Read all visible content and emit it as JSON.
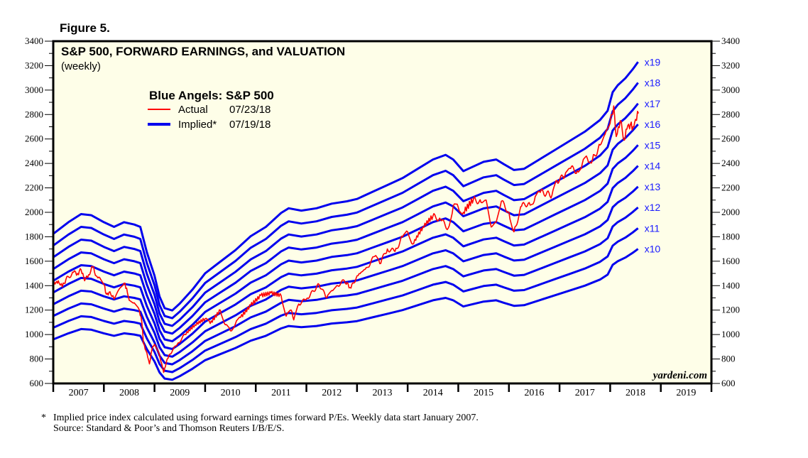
{
  "figure_label": "Figure 5.",
  "footnote": {
    "marker": "*",
    "line1": "Implied price index calculated using forward earnings times forward P/Es. Weekly data start January 2007.",
    "line2": "Source: Standard & Poor’s and Thomson Reuters I/B/E/S."
  },
  "watermark": "yardeni.com",
  "colors": {
    "actual": "#ff0000",
    "implied": "#0000ee",
    "multiple_label": "#1a1aff",
    "plot_background": "#fefee8",
    "frame": "#000000"
  },
  "chart_data": {
    "type": "line",
    "title": "S&P 500, FORWARD EARNINGS, and VALUATION",
    "subtitle": "(weekly)",
    "legend": {
      "title": "Blue Angels: S&P 500",
      "placement": "top-left",
      "entries": [
        {
          "name": "Actual",
          "date": "07/23/18"
        },
        {
          "name": "Implied*",
          "date": "07/19/18"
        }
      ]
    },
    "xlabel": "",
    "ylabel": "",
    "xlim": [
      2007,
      2020
    ],
    "ylim": [
      600,
      3400
    ],
    "y_ticks": [
      600,
      800,
      1000,
      1200,
      1400,
      1600,
      1800,
      2000,
      2200,
      2400,
      2600,
      2800,
      3000,
      3200,
      3400
    ],
    "x_tick_labels": [
      "2007",
      "2008",
      "2009",
      "2010",
      "2011",
      "2012",
      "2013",
      "2014",
      "2015",
      "2016",
      "2017",
      "2018",
      "2019"
    ],
    "grid": false,
    "multiples": [
      10,
      11,
      12,
      13,
      14,
      15,
      16,
      17,
      18,
      19
    ],
    "multiple_label_prefix": "x",
    "forward_eps": {
      "t": [
        2007.0,
        2007.3,
        2007.55,
        2007.75,
        2008.0,
        2008.2,
        2008.4,
        2008.6,
        2008.72,
        2008.85,
        2009.0,
        2009.1,
        2009.2,
        2009.35,
        2009.5,
        2009.75,
        2010.0,
        2010.3,
        2010.6,
        2010.9,
        2011.2,
        2011.5,
        2011.65,
        2011.9,
        2012.2,
        2012.5,
        2012.8,
        2013.0,
        2013.3,
        2013.6,
        2013.9,
        2014.2,
        2014.5,
        2014.75,
        2014.9,
        2015.1,
        2015.2,
        2015.5,
        2015.75,
        2015.9,
        2016.1,
        2016.3,
        2016.6,
        2016.9,
        2017.2,
        2017.5,
        2017.8,
        2017.95,
        2018.05,
        2018.15,
        2018.3,
        2018.45,
        2018.55
      ],
      "values": [
        96,
        101,
        104.5,
        104,
        101,
        99,
        101,
        100,
        99,
        88,
        78,
        69,
        64,
        63,
        66,
        72,
        79,
        84,
        89,
        95,
        99,
        105,
        107,
        106,
        107,
        109,
        110,
        111,
        114,
        117,
        120,
        124,
        128,
        130,
        128,
        123,
        124,
        127,
        128,
        126,
        123.5,
        124,
        128,
        132,
        136,
        140,
        145,
        149,
        157,
        160,
        163,
        167,
        170
      ]
    },
    "series": [
      {
        "name": "Actual S&P 500",
        "t": [
          2007.0,
          2007.05,
          2007.1,
          2007.18,
          2007.25,
          2007.4,
          2007.48,
          2007.55,
          2007.62,
          2007.7,
          2007.78,
          2007.85,
          2007.9,
          2008.0,
          2008.05,
          2008.12,
          2008.2,
          2008.3,
          2008.4,
          2008.45,
          2008.5,
          2008.6,
          2008.7,
          2008.75,
          2008.78,
          2008.85,
          2008.9,
          2008.95,
          2009.0,
          2009.1,
          2009.18,
          2009.25,
          2009.3,
          2009.45,
          2009.6,
          2009.8,
          2010.0,
          2010.1,
          2010.3,
          2010.4,
          2010.5,
          2010.6,
          2010.7,
          2010.9,
          2011.1,
          2011.3,
          2011.5,
          2011.6,
          2011.7,
          2011.75,
          2011.85,
          2012.0,
          2012.25,
          2012.4,
          2012.5,
          2012.6,
          2012.75,
          2012.88,
          2013.0,
          2013.2,
          2013.35,
          2013.45,
          2013.6,
          2013.75,
          2013.9,
          2014.0,
          2014.1,
          2014.3,
          2014.5,
          2014.65,
          2014.8,
          2014.9,
          2015.0,
          2015.1,
          2015.3,
          2015.45,
          2015.55,
          2015.65,
          2015.75,
          2015.85,
          2016.0,
          2016.1,
          2016.25,
          2016.4,
          2016.5,
          2016.6,
          2016.85,
          2016.95,
          2017.1,
          2017.2,
          2017.35,
          2017.45,
          2017.55,
          2017.65,
          2017.8,
          2017.9,
          2018.0,
          2018.07,
          2018.12,
          2018.16,
          2018.2,
          2018.28,
          2018.33,
          2018.4,
          2018.45,
          2018.5,
          2018.56
        ],
        "values": [
          1410,
          1425,
          1440,
          1390,
          1450,
          1510,
          1500,
          1530,
          1440,
          1490,
          1555,
          1480,
          1470,
          1410,
          1330,
          1350,
          1290,
          1370,
          1420,
          1380,
          1280,
          1260,
          1200,
          1100,
          930,
          850,
          760,
          880,
          920,
          830,
          690,
          800,
          840,
          920,
          1000,
          1080,
          1130,
          1090,
          1200,
          1080,
          1030,
          1090,
          1140,
          1240,
          1320,
          1340,
          1320,
          1150,
          1200,
          1120,
          1250,
          1290,
          1410,
          1300,
          1360,
          1400,
          1440,
          1380,
          1480,
          1550,
          1640,
          1580,
          1700,
          1680,
          1800,
          1840,
          1740,
          1880,
          1970,
          1940,
          1870,
          2050,
          2040,
          2000,
          2110,
          2080,
          2100,
          1880,
          1920,
          2090,
          2000,
          1840,
          2050,
          2080,
          2090,
          2170,
          2140,
          2260,
          2290,
          2360,
          2340,
          2400,
          2440,
          2430,
          2550,
          2640,
          2730,
          2870,
          2620,
          2700,
          2750,
          2590,
          2680,
          2720,
          2700,
          2760,
          2810
        ]
      }
    ]
  }
}
